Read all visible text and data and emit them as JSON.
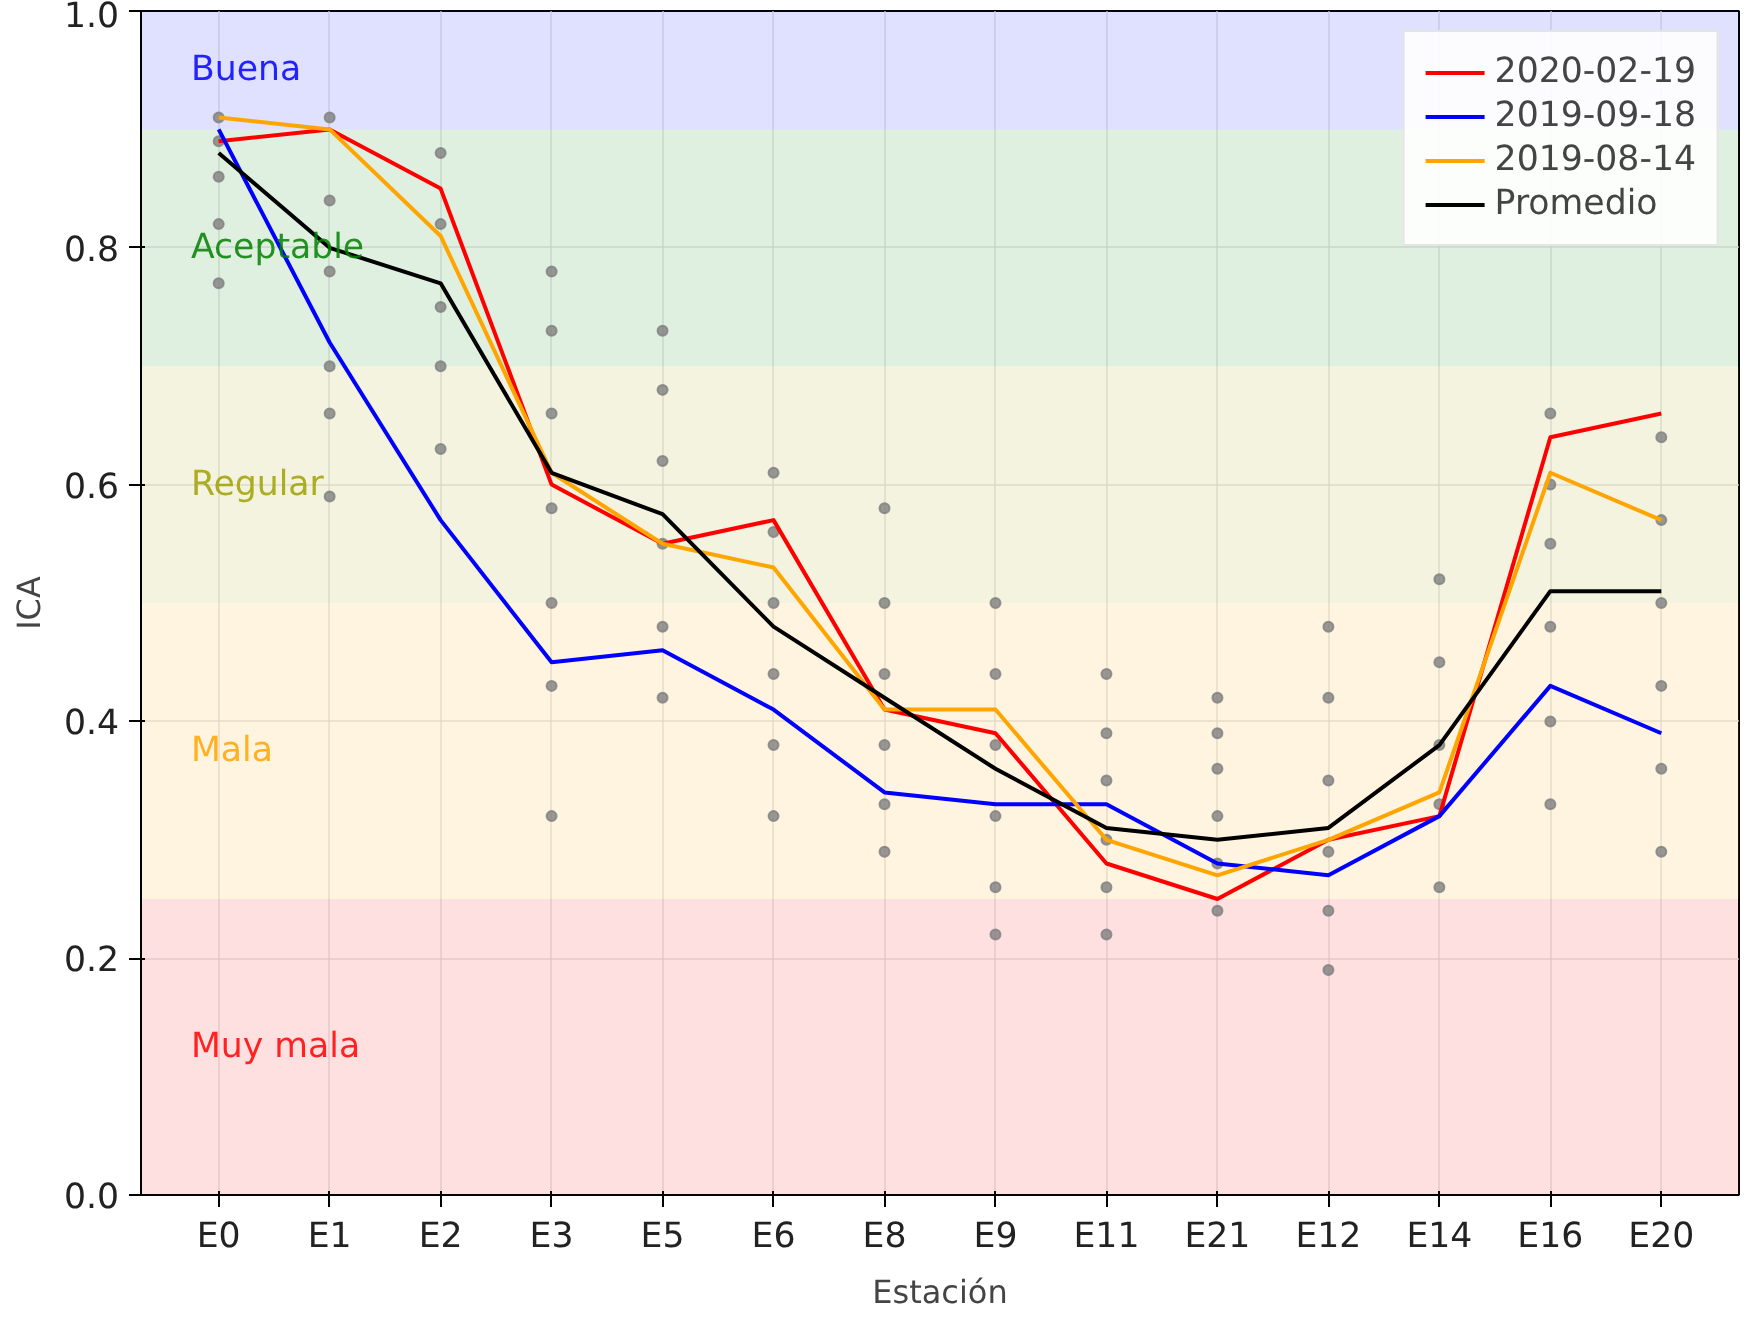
{
  "chart_data": {
    "type": "line",
    "xlabel": "Estación",
    "ylabel": "ICA",
    "categories": [
      "E0",
      "E1",
      "E2",
      "E3",
      "E5",
      "E6",
      "E8",
      "E9",
      "E11",
      "E21",
      "E12",
      "E14",
      "E16",
      "E20"
    ],
    "ylim": [
      0,
      1.0
    ],
    "yticks": [
      {
        "value": 0,
        "label": "0.0"
      },
      0.2,
      0.4,
      0.6,
      0.8,
      {
        "value": 1,
        "label": "1.0"
      }
    ],
    "grid": true,
    "legend": "top right",
    "line_style": "solid",
    "bands": [
      {
        "axis": "y",
        "from": 0.9,
        "to": 1.0,
        "label": "Buena",
        "color": "#0000ff"
      },
      {
        "axis": "y",
        "from": 0.7,
        "to": 0.9,
        "label": "Aceptable",
        "color": "#008000"
      },
      {
        "axis": "y",
        "from": 0.5,
        "to": 0.7,
        "label": "Regular",
        "color": "#a0a000"
      },
      {
        "axis": "y",
        "from": 0.25,
        "to": 0.5,
        "label": "Mala",
        "color": "#ffa500"
      },
      {
        "axis": "y",
        "from": 0.0,
        "to": 0.25,
        "label": "Muy mala",
        "color": "#ff0000"
      }
    ],
    "series": [
      {
        "type": "scatter",
        "marker": "circle",
        "color": "#808080",
        "x": [
          "E0",
          "E0",
          "E0",
          "E0",
          "E0",
          "E1",
          "E1",
          "E1",
          "E1",
          "E1",
          "E1",
          "E2",
          "E2",
          "E2",
          "E2",
          "E2",
          "E3",
          "E3",
          "E3",
          "E3",
          "E3",
          "E3",
          "E3",
          "E5",
          "E5",
          "E5",
          "E5",
          "E5",
          "E5",
          "E6",
          "E6",
          "E6",
          "E6",
          "E6",
          "E6",
          "E8",
          "E8",
          "E8",
          "E8",
          "E8",
          "E8",
          "E9",
          "E9",
          "E9",
          "E9",
          "E9",
          "E9",
          "E11",
          "E11",
          "E11",
          "E11",
          "E11",
          "E11",
          "E21",
          "E21",
          "E21",
          "E21",
          "E21",
          "E21",
          "E12",
          "E12",
          "E12",
          "E12",
          "E12",
          "E12",
          "E14",
          "E14",
          "E14",
          "E14",
          "E14",
          "E16",
          "E16",
          "E16",
          "E16",
          "E16",
          "E16",
          "E20",
          "E20",
          "E20",
          "E20",
          "E20",
          "E20"
        ],
        "values": [
          0.77,
          0.82,
          0.86,
          0.89,
          0.91,
          0.59,
          0.66,
          0.7,
          0.78,
          0.84,
          0.91,
          0.63,
          0.7,
          0.75,
          0.82,
          0.88,
          0.32,
          0.43,
          0.5,
          0.58,
          0.66,
          0.73,
          0.78,
          0.42,
          0.48,
          0.55,
          0.62,
          0.68,
          0.73,
          0.32,
          0.38,
          0.44,
          0.5,
          0.56,
          0.61,
          0.29,
          0.33,
          0.38,
          0.44,
          0.5,
          0.58,
          0.22,
          0.26,
          0.32,
          0.38,
          0.44,
          0.5,
          0.22,
          0.26,
          0.3,
          0.35,
          0.39,
          0.44,
          0.24,
          0.28,
          0.32,
          0.36,
          0.39,
          0.42,
          0.19,
          0.24,
          0.29,
          0.35,
          0.42,
          0.48,
          0.26,
          0.33,
          0.38,
          0.45,
          0.52,
          0.33,
          0.4,
          0.48,
          0.55,
          0.6,
          0.66,
          0.29,
          0.36,
          0.43,
          0.5,
          0.57,
          0.64
        ]
      },
      {
        "name": "2020-02-19",
        "color": "#ff0000",
        "values": [
          0.89,
          0.9,
          0.85,
          0.6,
          0.55,
          0.57,
          0.41,
          0.39,
          0.28,
          0.25,
          0.3,
          0.32,
          0.64,
          0.66
        ]
      },
      {
        "name": "2019-09-18",
        "color": "#0000ff",
        "values": [
          0.9,
          0.72,
          0.57,
          0.45,
          0.46,
          0.41,
          0.34,
          0.33,
          0.33,
          0.28,
          0.27,
          0.32,
          0.43,
          0.39
        ]
      },
      {
        "name": "2019-08-14",
        "color": "#ffa500",
        "values": [
          0.91,
          0.9,
          0.81,
          0.61,
          0.55,
          0.53,
          0.41,
          0.41,
          0.3,
          0.27,
          0.3,
          0.34,
          0.61,
          0.57
        ]
      },
      {
        "name": "Promedio",
        "color": "#000000",
        "values": [
          0.88,
          0.8,
          0.77,
          0.61,
          0.575,
          0.48,
          0.42,
          0.36,
          0.31,
          0.3,
          0.31,
          0.38,
          0.51,
          0.51
        ]
      }
    ]
  }
}
